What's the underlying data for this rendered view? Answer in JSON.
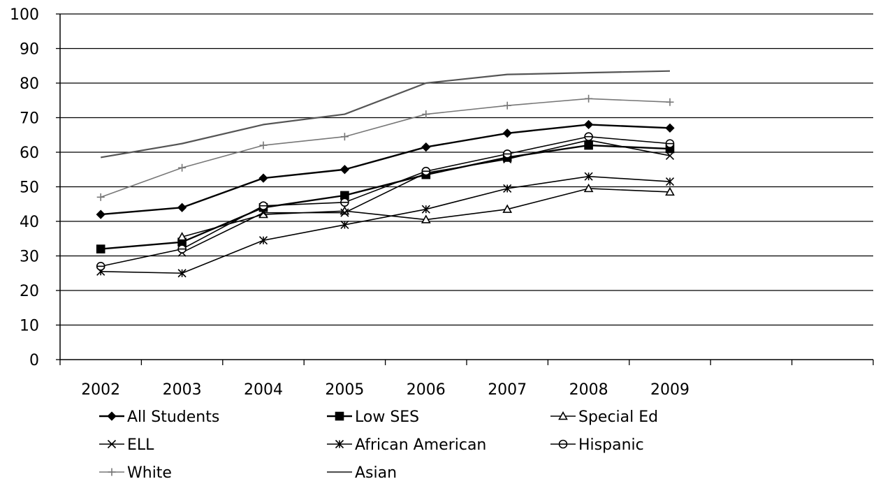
{
  "chart_data": {
    "type": "line",
    "title": "",
    "xlabel": "",
    "ylabel": "",
    "ylim": [
      0,
      100
    ],
    "yticks": [
      "0",
      "10",
      "20",
      "30",
      "40",
      "50",
      "60",
      "70",
      "80",
      "90",
      "100"
    ],
    "categories": [
      "2002",
      "2003",
      "2004",
      "2005",
      "2006",
      "2007",
      "2008",
      "2009"
    ],
    "grid": "horizontal",
    "legend_position": "bottom",
    "series": [
      {
        "name": "All Students",
        "marker": "diamond-filled",
        "color": "#000000",
        "stroke": 2.4,
        "values": [
          42,
          44,
          52.5,
          55,
          61.5,
          65.5,
          68,
          67
        ]
      },
      {
        "name": "Low SES",
        "marker": "square-filled",
        "color": "#000000",
        "stroke": 2.4,
        "values": [
          32,
          34,
          44,
          47.5,
          53.5,
          58.5,
          62,
          61
        ]
      },
      {
        "name": "Special Ed",
        "marker": "triangle-open",
        "color": "#000000",
        "stroke": 1.6,
        "values": [
          null,
          35.5,
          42,
          43,
          40.5,
          43.5,
          49.5,
          48.5
        ]
      },
      {
        "name": "ELL",
        "marker": "x",
        "color": "#000000",
        "stroke": 1.6,
        "values": [
          null,
          31,
          42.5,
          42.5,
          54,
          58,
          63.5,
          59
        ]
      },
      {
        "name": "African American",
        "marker": "asterisk",
        "color": "#000000",
        "stroke": 1.6,
        "values": [
          25.5,
          25,
          34.5,
          39,
          43.5,
          49.5,
          53,
          51.5
        ]
      },
      {
        "name": "Hispanic",
        "marker": "circle-open",
        "color": "#000000",
        "stroke": 1.6,
        "values": [
          27,
          32,
          44.5,
          45.5,
          54.5,
          59.5,
          64.5,
          62.5
        ]
      },
      {
        "name": "White",
        "marker": "plus",
        "color": "#777777",
        "stroke": 1.6,
        "values": [
          47,
          55.5,
          62,
          64.5,
          71,
          73.5,
          75.5,
          74.5
        ]
      },
      {
        "name": "Asian",
        "marker": "none",
        "color": "#555555",
        "stroke": 2.2,
        "values": [
          58.5,
          62.5,
          68,
          71,
          80,
          82.5,
          83,
          83.5
        ]
      }
    ]
  }
}
